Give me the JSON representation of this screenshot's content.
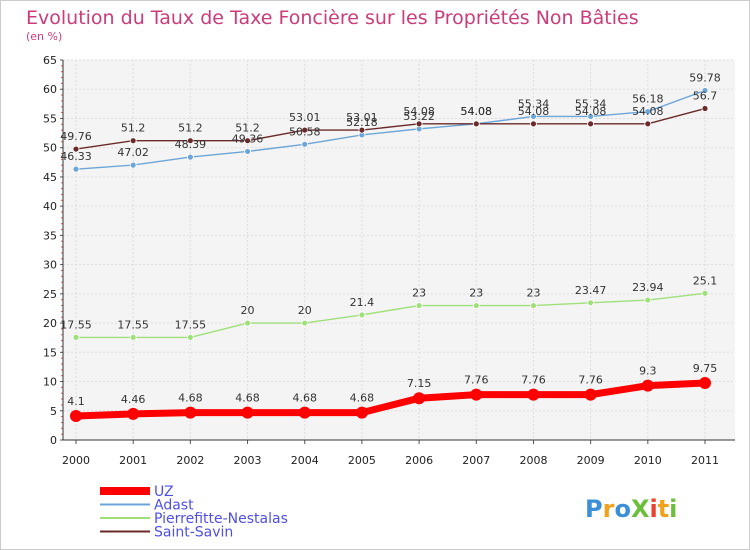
{
  "chart_data": {
    "type": "line",
    "title": "Evolution du Taux de Taxe Foncière sur les Propriétés Non Bâties",
    "subtitle": "(en %)",
    "x": [
      "2000",
      "2001",
      "2002",
      "2003",
      "2004",
      "2005",
      "2006",
      "2007",
      "2008",
      "2009",
      "2010",
      "2011"
    ],
    "ylim": [
      0,
      65
    ],
    "yticks": [
      "0",
      "5",
      "10",
      "15",
      "20",
      "25",
      "30",
      "35",
      "40",
      "45",
      "50",
      "55",
      "60",
      "65"
    ],
    "grid": true,
    "legend_position": "bottom-left",
    "series": [
      {
        "name": "UZ",
        "color": "#ff0000",
        "values": [
          4.1,
          4.46,
          4.68,
          4.68,
          4.68,
          4.68,
          7.15,
          7.76,
          7.76,
          7.76,
          9.3,
          9.75
        ],
        "labels": [
          "4.1",
          "4.46",
          "4.68",
          "4.68",
          "4.68",
          "4.68",
          "7.15",
          "7.76",
          "7.76",
          "7.76",
          "9.3",
          "9.75"
        ]
      },
      {
        "name": "Adast",
        "color": "#6ca6d8",
        "values": [
          46.33,
          47.02,
          48.39,
          49.36,
          50.58,
          52.18,
          53.22,
          54.08,
          55.34,
          55.34,
          56.18,
          59.78
        ],
        "labels": [
          "46.33",
          "47.02",
          "48.39",
          "49.36",
          "50.58",
          "52.18",
          "53.22",
          "54.08",
          "55.34",
          "55.34",
          "56.18",
          "59.78"
        ]
      },
      {
        "name": "Pierrefitte-Nestalas",
        "color": "#9fe07a",
        "values": [
          17.55,
          17.55,
          17.55,
          20,
          20,
          21.4,
          23,
          23,
          23,
          23.47,
          23.94,
          25.1
        ],
        "labels": [
          "17.55",
          "17.55",
          "17.55",
          "20",
          "20",
          "21.4",
          "23",
          "23",
          "23",
          "23.47",
          "23.94",
          "25.1"
        ]
      },
      {
        "name": "Saint-Savin",
        "color": "#6b2a2a",
        "values": [
          49.76,
          51.2,
          51.2,
          51.2,
          53.01,
          53.01,
          54.08,
          54.08,
          54.08,
          54.08,
          54.08,
          56.7
        ],
        "labels": [
          "49.76",
          "51.2",
          "51.2",
          "51.2",
          "53.01",
          "53.01",
          "54.08",
          "54.08",
          "54.08",
          "54.08",
          "54.08",
          "56.7"
        ]
      }
    ]
  },
  "brand": {
    "text": "ProXiti"
  }
}
